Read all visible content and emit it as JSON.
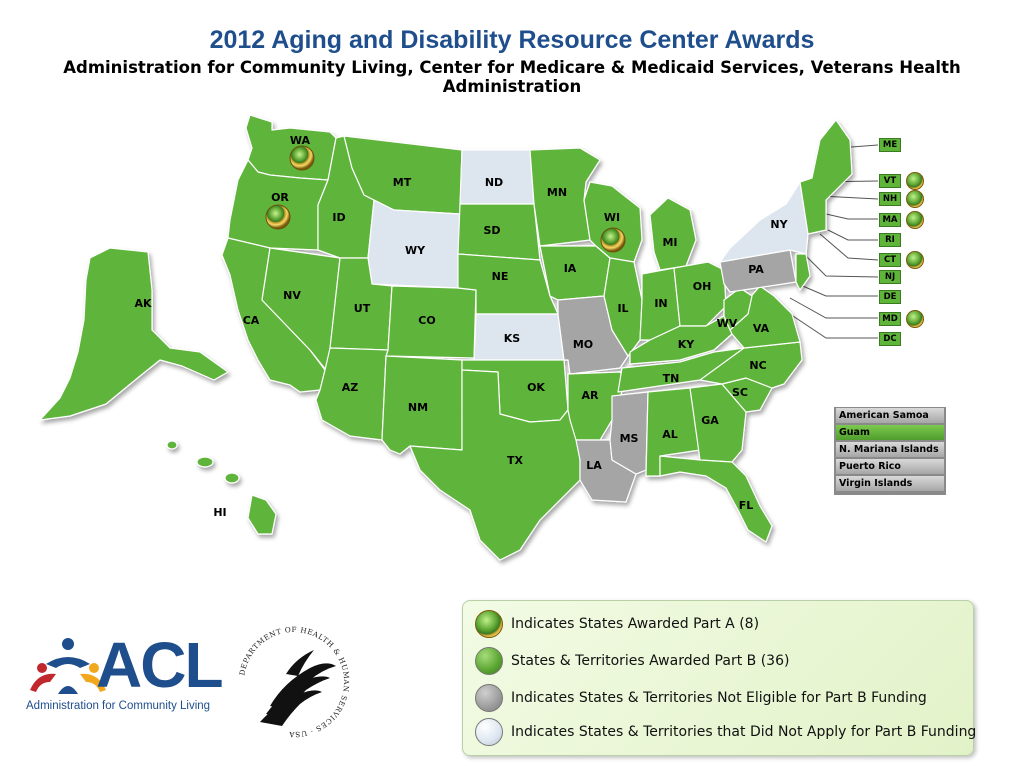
{
  "title": "2012 Aging and Disability Resource Center Awards",
  "subtitle": "Administration for Community Living, Center for Medicare & Medicaid Services, Veterans Health Administration",
  "colors": {
    "part_b": "#5fb43a",
    "not_eligible": "#a5a5a5",
    "did_not_apply": "#dde6ef",
    "title": "#1f4e8c"
  },
  "states": {
    "WA": {
      "label": "WA",
      "status": "part_b",
      "part_a": true
    },
    "OR": {
      "label": "OR",
      "status": "part_b",
      "part_a": true
    },
    "CA": {
      "label": "CA",
      "status": "part_b",
      "part_a": false
    },
    "NV": {
      "label": "NV",
      "status": "part_b",
      "part_a": false
    },
    "ID": {
      "label": "ID",
      "status": "part_b",
      "part_a": false
    },
    "MT": {
      "label": "MT",
      "status": "part_b",
      "part_a": false
    },
    "WY": {
      "label": "WY",
      "status": "did_not_apply",
      "part_a": false
    },
    "UT": {
      "label": "UT",
      "status": "part_b",
      "part_a": false
    },
    "CO": {
      "label": "CO",
      "status": "part_b",
      "part_a": false
    },
    "AZ": {
      "label": "AZ",
      "status": "part_b",
      "part_a": false
    },
    "NM": {
      "label": "NM",
      "status": "part_b",
      "part_a": false
    },
    "ND": {
      "label": "ND",
      "status": "did_not_apply",
      "part_a": false
    },
    "SD": {
      "label": "SD",
      "status": "part_b",
      "part_a": false
    },
    "NE": {
      "label": "NE",
      "status": "part_b",
      "part_a": false
    },
    "KS": {
      "label": "KS",
      "status": "did_not_apply",
      "part_a": false
    },
    "OK": {
      "label": "OK",
      "status": "part_b",
      "part_a": false
    },
    "TX": {
      "label": "TX",
      "status": "part_b",
      "part_a": false
    },
    "MN": {
      "label": "MN",
      "status": "part_b",
      "part_a": false
    },
    "IA": {
      "label": "IA",
      "status": "part_b",
      "part_a": false
    },
    "MO": {
      "label": "MO",
      "status": "not_eligible",
      "part_a": false
    },
    "AR": {
      "label": "AR",
      "status": "part_b",
      "part_a": false
    },
    "LA": {
      "label": "LA",
      "status": "not_eligible",
      "part_a": false
    },
    "WI": {
      "label": "WI",
      "status": "part_b",
      "part_a": true
    },
    "IL": {
      "label": "IL",
      "status": "part_b",
      "part_a": false
    },
    "MI": {
      "label": "MI",
      "status": "part_b",
      "part_a": false
    },
    "IN": {
      "label": "IN",
      "status": "part_b",
      "part_a": false
    },
    "OH": {
      "label": "OH",
      "status": "part_b",
      "part_a": false
    },
    "KY": {
      "label": "KY",
      "status": "part_b",
      "part_a": false
    },
    "TN": {
      "label": "TN",
      "status": "part_b",
      "part_a": false
    },
    "MS": {
      "label": "MS",
      "status": "not_eligible",
      "part_a": false
    },
    "AL": {
      "label": "AL",
      "status": "part_b",
      "part_a": false
    },
    "GA": {
      "label": "GA",
      "status": "part_b",
      "part_a": false
    },
    "FL": {
      "label": "FL",
      "status": "part_b",
      "part_a": false
    },
    "SC": {
      "label": "SC",
      "status": "part_b",
      "part_a": false
    },
    "NC": {
      "label": "NC",
      "status": "part_b",
      "part_a": false
    },
    "VA": {
      "label": "VA",
      "status": "part_b",
      "part_a": false
    },
    "WV": {
      "label": "WV",
      "status": "part_b",
      "part_a": false
    },
    "PA": {
      "label": "PA",
      "status": "not_eligible",
      "part_a": false
    },
    "NY": {
      "label": "NY",
      "status": "did_not_apply",
      "part_a": false
    },
    "AK": {
      "label": "AK",
      "status": "part_b",
      "part_a": false
    },
    "HI": {
      "label": "HI",
      "status": "part_b",
      "part_a": false
    }
  },
  "northeast_tags": [
    {
      "label": "ME",
      "part_a": false
    },
    {
      "label": "VT",
      "part_a": true
    },
    {
      "label": "NH",
      "part_a": true
    },
    {
      "label": "MA",
      "part_a": true
    },
    {
      "label": "RI",
      "part_a": false
    },
    {
      "label": "CT",
      "part_a": true
    },
    {
      "label": "NJ",
      "part_a": false
    },
    {
      "label": "DE",
      "part_a": false
    },
    {
      "label": "MD",
      "part_a": true
    },
    {
      "label": "DC",
      "part_a": false
    }
  ],
  "territories": [
    {
      "label": "American Samoa",
      "status": "not_eligible"
    },
    {
      "label": "Guam",
      "status": "part_b"
    },
    {
      "label": "N. Mariana Islands",
      "status": "not_eligible"
    },
    {
      "label": "Puerto Rico",
      "status": "not_eligible"
    },
    {
      "label": "Virgin Islands",
      "status": "not_eligible"
    }
  ],
  "legend": {
    "part_a": "Indicates States Awarded Part A (8)",
    "part_b": "States & Territories Awarded  Part B (36)",
    "not_eligible": "Indicates States & Territories Not Eligible for Part B Funding",
    "did_not_apply": "Indicates States & Territories that Did Not Apply for Part B Funding"
  },
  "logos": {
    "acl_text": "ACL",
    "acl_caption": "Administration for Community Living",
    "hhs_seal_text": "DEPARTMENT OF HEALTH & HUMAN SERVICES · USA"
  }
}
